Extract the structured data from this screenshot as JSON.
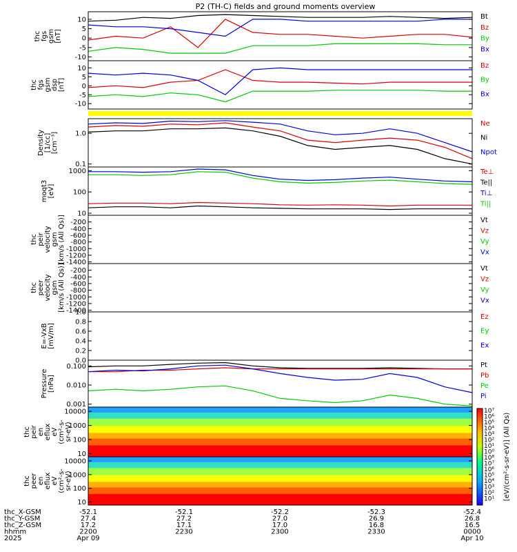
{
  "title": "P2 (TH-C) fields and ground moments overview",
  "colors": {
    "black": "#000000",
    "red": "#dd0000",
    "green": "#00cc00",
    "blue": "#0000dd",
    "yellow": "#ffff00"
  },
  "chart_data": [
    {
      "type": "line",
      "ylabel": [
        "thc",
        "fgs",
        "gsm",
        "[nT]"
      ],
      "ylim": [
        -12,
        14
      ],
      "yticks": [
        "10",
        "5",
        "0",
        "-5",
        "-10"
      ],
      "ytick_values": [
        10,
        5,
        0,
        -5,
        -10
      ],
      "series": [
        {
          "name": "Bt",
          "color": "black",
          "values": [
            9,
            9.5,
            11,
            10.5,
            12,
            12.5,
            12,
            11.5,
            11,
            11,
            11,
            11.5,
            11,
            10.5,
            11
          ]
        },
        {
          "name": "Bz",
          "color": "red",
          "values": [
            -1,
            1,
            0,
            6,
            -5,
            10,
            3,
            2,
            2,
            1,
            0,
            1,
            2,
            2,
            0.5
          ]
        },
        {
          "name": "By",
          "color": "green",
          "values": [
            -7,
            -5,
            -6,
            -8,
            -8,
            -8,
            -4,
            -4,
            -4,
            -3,
            -3,
            -3,
            -3,
            -3.5,
            -3.5
          ]
        },
        {
          "name": "Bx",
          "color": "blue",
          "values": [
            7,
            6,
            6,
            5,
            3,
            1,
            10,
            10,
            9,
            9,
            9,
            9,
            9,
            10,
            10
          ]
        }
      ]
    },
    {
      "type": "line",
      "ylabel": [
        "thc",
        "fgs",
        "gsm",
        "dsp",
        "[nT]"
      ],
      "ylim": [
        -13,
        14
      ],
      "yticks": [
        "10",
        "5",
        "0",
        "-5",
        "-10"
      ],
      "ytick_values": [
        10,
        5,
        0,
        -5,
        -10
      ],
      "series": [
        {
          "name": "Bz",
          "color": "red",
          "values": [
            -1,
            0,
            -1,
            2,
            3,
            9,
            3,
            2,
            2,
            1.5,
            1,
            2,
            2,
            2,
            2
          ]
        },
        {
          "name": "By",
          "color": "green",
          "values": [
            -6,
            -5,
            -6,
            -4,
            -5,
            -9,
            -3,
            -3,
            -3,
            -2.5,
            -2.5,
            -2.5,
            -2.5,
            -3,
            -3
          ]
        },
        {
          "name": "Bx",
          "color": "blue",
          "values": [
            7,
            6,
            7,
            6,
            3,
            -5,
            9,
            10,
            9,
            9,
            9,
            9,
            9,
            9,
            9
          ]
        }
      ]
    },
    {
      "type": "line",
      "ylabel": [
        "Density",
        "[1/cc]",
        "[cm⁻³]"
      ],
      "scale": "log",
      "ylim": [
        0.08,
        3
      ],
      "yticks": [
        "1.0",
        "0.1"
      ],
      "ytick_values": [
        1,
        0.1
      ],
      "series": [
        {
          "name": "Ne",
          "color": "red",
          "values": [
            1.6,
            1.8,
            1.7,
            2,
            1.9,
            2.2,
            1.6,
            1.2,
            0.6,
            0.5,
            0.6,
            0.7,
            0.6,
            0.35,
            0.15
          ]
        },
        {
          "name": "Ni",
          "color": "black",
          "values": [
            1.1,
            1.2,
            1.2,
            1.4,
            1.4,
            1.5,
            1.2,
            0.8,
            0.4,
            0.3,
            0.35,
            0.4,
            0.3,
            0.15,
            0.1
          ]
        },
        {
          "name": "Npot",
          "color": "blue",
          "values": [
            2,
            2.2,
            2.1,
            2.5,
            2.4,
            2.6,
            2.3,
            2,
            1.2,
            0.9,
            1,
            1.4,
            1,
            0.5,
            0.25
          ]
        }
      ]
    },
    {
      "type": "line",
      "ylabel": [
        "moqt3",
        "[eV]"
      ],
      "scale": "log",
      "ylim": [
        8,
        1500
      ],
      "yticks": [
        "1000",
        "100",
        "10"
      ],
      "ytick_values": [
        1000,
        100,
        10
      ],
      "series": [
        {
          "name": "Te⊥",
          "color": "red",
          "values": [
            28,
            30,
            30,
            28,
            32,
            30,
            28,
            25,
            24,
            25,
            24,
            22,
            24,
            24,
            24
          ]
        },
        {
          "name": "Te||",
          "color": "black",
          "values": [
            18,
            20,
            20,
            18,
            22,
            20,
            18,
            17,
            16,
            16,
            16,
            15,
            16,
            16,
            16
          ]
        },
        {
          "name": "Ti⊥",
          "color": "blue",
          "values": [
            900,
            900,
            850,
            900,
            1200,
            1100,
            600,
            400,
            350,
            380,
            450,
            500,
            400,
            330,
            300
          ]
        },
        {
          "name": "Ti||",
          "color": "green",
          "values": [
            650,
            650,
            600,
            650,
            900,
            850,
            450,
            300,
            260,
            280,
            330,
            360,
            300,
            250,
            230
          ]
        }
      ]
    },
    {
      "type": "line",
      "ylabel": [
        "thc",
        "peir",
        "velocity",
        "gsm",
        "[km/s (All Qs)]"
      ],
      "ylim": [
        -1450,
        0
      ],
      "yticks": [
        "-200",
        "-400",
        "-600",
        "-800",
        "-1000",
        "-1200",
        "-1400"
      ],
      "ytick_values": [
        -200,
        -400,
        -600,
        -800,
        -1000,
        -1200,
        -1400
      ],
      "series": [
        {
          "name": "Vt",
          "color": "black",
          "values": []
        },
        {
          "name": "Vz",
          "color": "red",
          "values": []
        },
        {
          "name": "Vy",
          "color": "green",
          "values": []
        },
        {
          "name": "Vx",
          "color": "blue",
          "values": []
        }
      ]
    },
    {
      "type": "line",
      "ylabel": [
        "thc",
        "peer",
        "velocity",
        "gsm",
        "[km/s (All Qs)]"
      ],
      "ylim": [
        -1450,
        0
      ],
      "yticks": [
        "-200",
        "-400",
        "-600",
        "-800",
        "-1000",
        "-1200",
        "-1400"
      ],
      "ytick_values": [
        -200,
        -400,
        -600,
        -800,
        -1000,
        -1200,
        -1400
      ],
      "series": [
        {
          "name": "Vt",
          "color": "black",
          "values": []
        },
        {
          "name": "Vz",
          "color": "red",
          "values": []
        },
        {
          "name": "Vy",
          "color": "green",
          "values": []
        },
        {
          "name": "Vx",
          "color": "blue",
          "values": []
        }
      ]
    },
    {
      "type": "line",
      "ylabel": [
        "E=-VxB",
        "[mV/m]"
      ],
      "ylim": [
        0,
        1
      ],
      "yticks": [
        "1.0",
        "0.8",
        "0.6",
        "0.4",
        "0.2",
        "0.0"
      ],
      "ytick_values": [
        1,
        0.8,
        0.6,
        0.4,
        0.2,
        0
      ],
      "series": [
        {
          "name": "Ez",
          "color": "red",
          "values": []
        },
        {
          "name": "Ey",
          "color": "green",
          "values": []
        },
        {
          "name": "Ex",
          "color": "blue",
          "values": []
        }
      ]
    },
    {
      "type": "line",
      "ylabel": [
        "Pressure",
        "[nPa]"
      ],
      "scale": "log",
      "ylim": [
        0.0007,
        0.2
      ],
      "yticks": [
        "0.100",
        "0.010",
        "0.001"
      ],
      "ytick_values": [
        0.1,
        0.01,
        0.001
      ],
      "series": [
        {
          "name": "Pt",
          "color": "black",
          "values": [
            0.09,
            0.1,
            0.1,
            0.12,
            0.14,
            0.15,
            0.1,
            0.08,
            0.075,
            0.075,
            0.075,
            0.08,
            0.075,
            0.07,
            0.07
          ]
        },
        {
          "name": "Pb",
          "color": "red",
          "values": [
            0.05,
            0.05,
            0.06,
            0.06,
            0.07,
            0.08,
            0.07,
            0.07,
            0.07,
            0.07,
            0.07,
            0.07,
            0.07,
            0.07,
            0.07
          ]
        },
        {
          "name": "Pe",
          "color": "green",
          "values": [
            0.005,
            0.006,
            0.005,
            0.006,
            0.008,
            0.009,
            0.005,
            0.002,
            0.0015,
            0.0012,
            0.0015,
            0.003,
            0.002,
            0.001,
            0.0008
          ]
        },
        {
          "name": "Pi",
          "color": "blue",
          "values": [
            0.05,
            0.06,
            0.055,
            0.07,
            0.1,
            0.11,
            0.07,
            0.04,
            0.025,
            0.018,
            0.02,
            0.04,
            0.025,
            0.008,
            0.004
          ]
        }
      ]
    },
    {
      "type": "heatmap",
      "ylabel": [
        "thc",
        "peir",
        "en",
        "eflux",
        "eV",
        "(cm²-s-",
        "sr-eV)"
      ],
      "scale": "log",
      "ylim": [
        6,
        20000
      ],
      "yticks": [
        "10000",
        "1000",
        "100",
        "10"
      ],
      "ytick_values": [
        10000,
        1000,
        100,
        10
      ]
    },
    {
      "type": "heatmap",
      "ylabel": [
        "thc",
        "peer",
        "en",
        "eflux",
        "eV",
        "(cm²-s-",
        "sr-eV)"
      ],
      "scale": "log",
      "ylim": [
        6,
        20000
      ],
      "yticks": [
        "10000",
        "1000",
        "100",
        "10"
      ],
      "ytick_values": [
        10000,
        1000,
        100,
        10
      ]
    }
  ],
  "colorbar": {
    "label": "[eV/(cm²-s-sr-eV)] (All Qs)",
    "ticks": [
      "10⁷",
      "10⁶",
      "10⁵",
      "10⁴",
      "10³",
      "10²",
      "10¹",
      "10⁰",
      "10⁸",
      "10⁷",
      "10⁶",
      "10⁵",
      "10⁴",
      "10³",
      "10²",
      "10¹"
    ]
  },
  "xaxis": {
    "row_labels": [
      "thc_X-GSM",
      "thc_Y-GSM",
      "thc_Z-GSM",
      "hhmm",
      "2025"
    ],
    "columns": [
      [
        "-52.1",
        "27.4",
        "17.2",
        "2200",
        "Apr 09"
      ],
      [
        "-52.1",
        "27.2",
        "17.1",
        "2230",
        ""
      ],
      [
        "-52.2",
        "27.0",
        "17.0",
        "2300",
        ""
      ],
      [
        "-52.3",
        "26.9",
        "16.8",
        "2330",
        ""
      ],
      [
        "-52.4",
        "26.8",
        "16.5",
        "0000",
        "Apr 10"
      ]
    ]
  }
}
